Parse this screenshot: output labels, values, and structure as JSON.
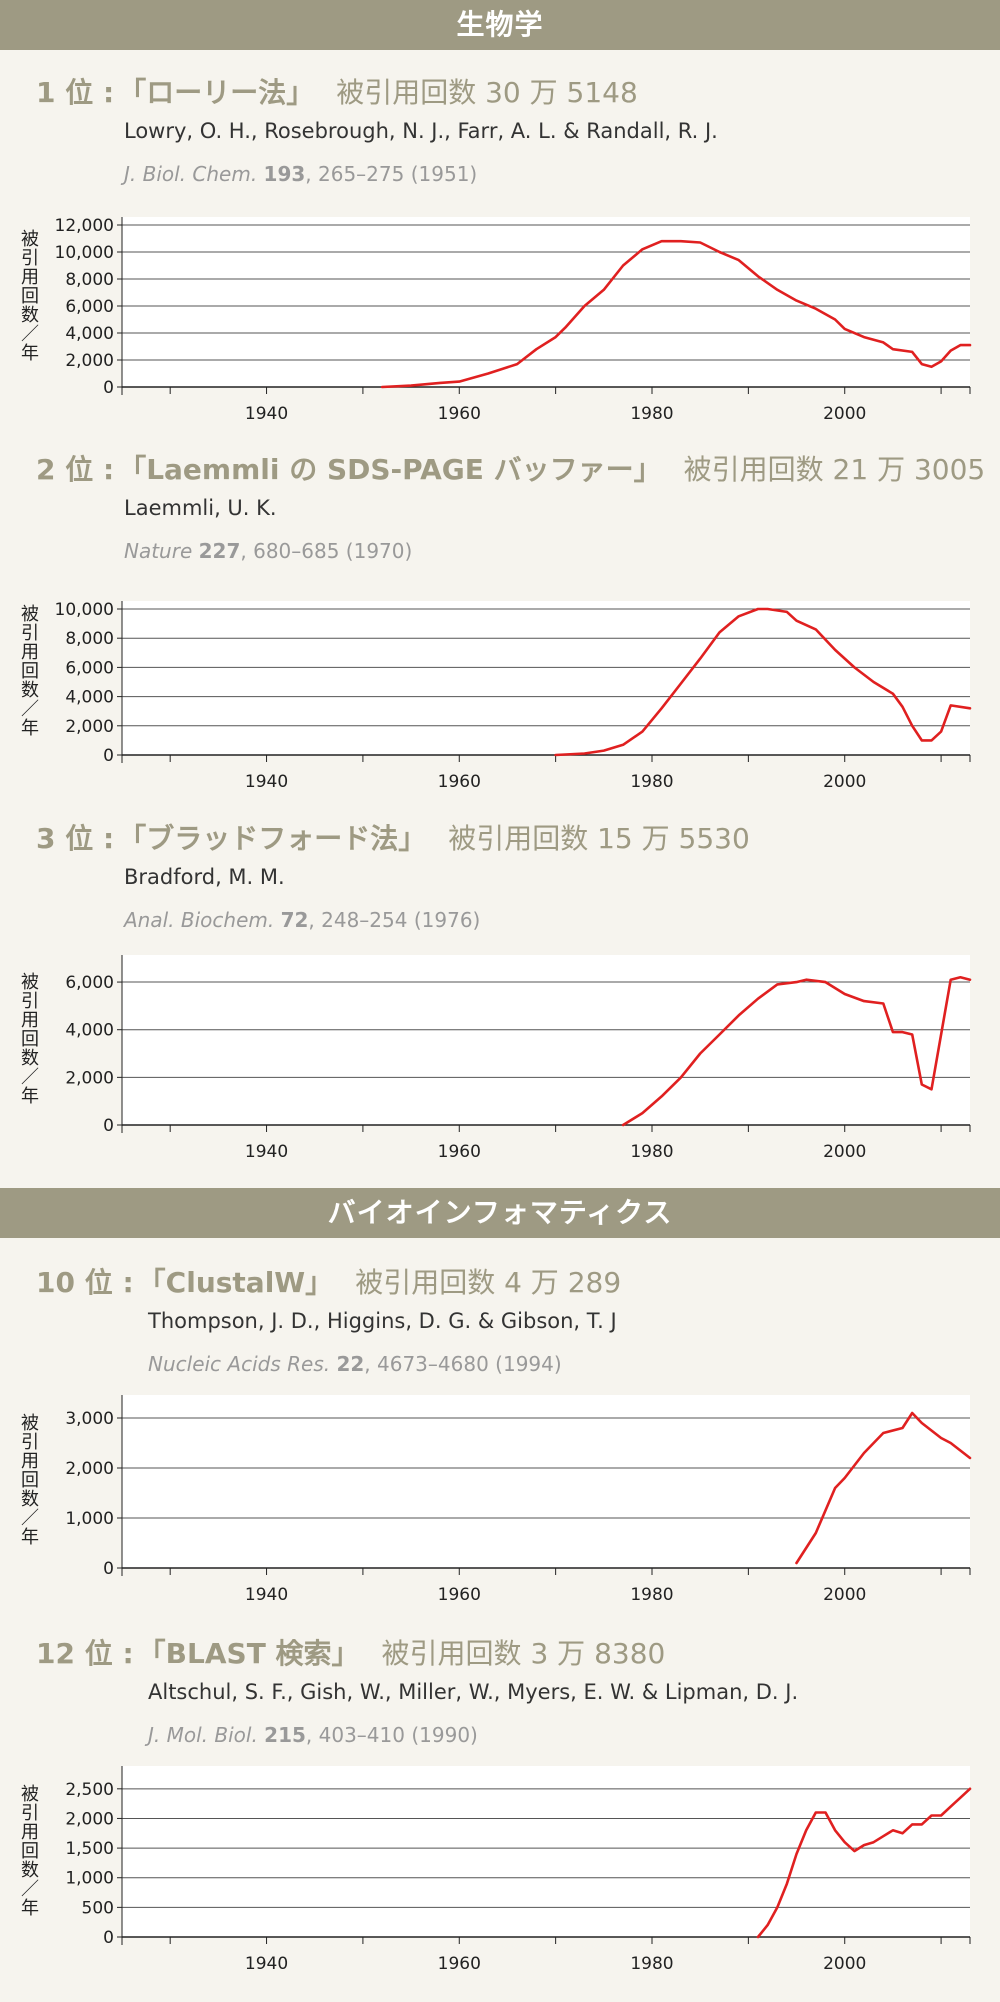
{
  "sections": [
    {
      "title": "生物学"
    },
    {
      "title": "バイオインフォマティクス"
    }
  ],
  "y_axis_label": [
    "被",
    "引",
    "用",
    "回",
    "数",
    "／",
    "年"
  ],
  "entries": [
    {
      "rank": "1 位 :",
      "name": "「ローリー法」",
      "citations": "被引用回数 30 万 5148",
      "authors": "Lowry, O. H., Rosebrough, N. J., Farr, A. L. & Randall, R. J.",
      "journal": "J. Biol. Chem.",
      "volume": "193",
      "pages": ", 265–275 (1951)"
    },
    {
      "rank": "2 位 :",
      "name": "「Laemmli の SDS-PAGE バッファー」",
      "citations": "被引用回数 21 万 3005",
      "authors": "Laemmli, U. K.",
      "journal": "Nature",
      "volume": "227",
      "pages": ", 680–685 (1970)"
    },
    {
      "rank": "3 位 :",
      "name": "「ブラッドフォード法」",
      "citations": "被引用回数 15 万 5530",
      "authors": "Bradford, M. M.",
      "journal": "Anal. Biochem.",
      "volume": "72",
      "pages": ", 248–254 (1976)"
    },
    {
      "rank": "10 位 :",
      "name": "「ClustalW」",
      "citations": "被引用回数 4 万 289",
      "authors": "Thompson, J. D., Higgins, D. G. & Gibson, T. J",
      "journal": "Nucleic Acids Res.",
      "volume": "22",
      "pages": ", 4673–4680 (1994)"
    },
    {
      "rank": "12 位 :",
      "name": "「BLAST 検索」",
      "citations": "被引用回数 3 万 8380",
      "authors": "Altschul, S. F., Gish, W., Miller, W., Myers, E. W. & Lipman, D. J.",
      "journal": "J. Mol. Biol.",
      "volume": "215",
      "pages": ", 403–410 (1990)"
    }
  ],
  "chart_data": [
    {
      "type": "line",
      "line_color": "#e02020",
      "x_ticks": [
        1940,
        1960,
        1980,
        2000
      ],
      "xlim": [
        1925,
        2013
      ],
      "ylim": [
        0,
        12000
      ],
      "y_ticks": [
        0,
        2000,
        4000,
        6000,
        8000,
        10000,
        12000
      ],
      "y_tick_labels": [
        "0",
        "2,000",
        "4,000",
        "6,000",
        "8,000",
        "10,000",
        "12,000"
      ],
      "grid": true,
      "series": [
        {
          "x": [
            1952,
            1955,
            1958,
            1960,
            1963,
            1966,
            1968,
            1970,
            1971,
            1973,
            1975,
            1977,
            1979,
            1981,
            1983,
            1985,
            1987,
            1989,
            1991,
            1993,
            1995,
            1997,
            1999,
            2000,
            2002,
            2004,
            2005,
            2007,
            2008,
            2009,
            2010,
            2011,
            2012,
            2013
          ],
          "y": [
            0,
            100,
            300,
            400,
            1000,
            1700,
            2800,
            3700,
            4400,
            6000,
            7200,
            9000,
            10200,
            10800,
            10800,
            10700,
            10000,
            9400,
            8200,
            7200,
            6400,
            5800,
            5000,
            4300,
            3700,
            3300,
            2800,
            2600,
            1700,
            1500,
            1900,
            2700,
            3100,
            3100
          ]
        }
      ]
    },
    {
      "type": "line",
      "line_color": "#e02020",
      "x_ticks": [
        1940,
        1960,
        1980,
        2000
      ],
      "xlim": [
        1925,
        2013
      ],
      "ylim": [
        0,
        10000
      ],
      "y_ticks": [
        0,
        2000,
        4000,
        6000,
        8000,
        10000
      ],
      "y_tick_labels": [
        "0",
        "2,000",
        "4,000",
        "6,000",
        "8,000",
        "10,000"
      ],
      "grid": true,
      "series": [
        {
          "x": [
            1970,
            1973,
            1975,
            1977,
            1979,
            1981,
            1983,
            1985,
            1987,
            1989,
            1991,
            1992,
            1994,
            1995,
            1997,
            1999,
            2001,
            2003,
            2005,
            2006,
            2007,
            2008,
            2009,
            2010,
            2011,
            2013
          ],
          "y": [
            0,
            100,
            300,
            700,
            1600,
            3200,
            4900,
            6600,
            8400,
            9500,
            10000,
            10000,
            9800,
            9200,
            8600,
            7200,
            6000,
            5000,
            4200,
            3300,
            2000,
            1000,
            1000,
            1600,
            3400,
            3200
          ]
        }
      ]
    },
    {
      "type": "line",
      "line_color": "#e02020",
      "x_ticks": [
        1940,
        1960,
        1980,
        2000
      ],
      "xlim": [
        1925,
        2013
      ],
      "ylim": [
        0,
        6800
      ],
      "y_ticks": [
        0,
        2000,
        4000,
        6000
      ],
      "y_tick_labels": [
        "0",
        "2,000",
        "4,000",
        "6,000"
      ],
      "grid": true,
      "series": [
        {
          "x": [
            1977,
            1979,
            1981,
            1983,
            1985,
            1987,
            1989,
            1991,
            1993,
            1995,
            1996,
            1998,
            2000,
            2002,
            2004,
            2005,
            2006,
            2007,
            2008,
            2009,
            2010,
            2011,
            2012,
            2013
          ],
          "y": [
            0,
            500,
            1200,
            2000,
            3000,
            3800,
            4600,
            5300,
            5900,
            6000,
            6100,
            6000,
            5500,
            5200,
            5100,
            3900,
            3900,
            3800,
            1700,
            1500,
            3800,
            6100,
            6200,
            6100
          ]
        }
      ]
    },
    {
      "type": "line",
      "line_color": "#e02020",
      "x_ticks": [
        1940,
        1960,
        1980,
        2000
      ],
      "xlim": [
        1925,
        2013
      ],
      "ylim": [
        0,
        3300
      ],
      "y_ticks": [
        0,
        1000,
        2000,
        3000
      ],
      "y_tick_labels": [
        "0",
        "1,000",
        "2,000",
        "3,000"
      ],
      "grid": true,
      "series": [
        {
          "x": [
            1995,
            1997,
            1999,
            2000,
            2002,
            2004,
            2006,
            2007,
            2008,
            2010,
            2011,
            2013
          ],
          "y": [
            100,
            700,
            1600,
            1800,
            2300,
            2700,
            2800,
            3100,
            2900,
            2600,
            2500,
            2200
          ]
        }
      ]
    },
    {
      "type": "line",
      "line_color": "#e02020",
      "x_ticks": [
        1940,
        1960,
        1980,
        2000
      ],
      "xlim": [
        1925,
        2013
      ],
      "ylim": [
        0,
        2750
      ],
      "y_ticks": [
        0,
        500,
        1000,
        1500,
        2000,
        2500
      ],
      "y_tick_labels": [
        "0",
        "500",
        "1,000",
        "1,500",
        "2,000",
        "2,500"
      ],
      "grid": true,
      "series": [
        {
          "x": [
            1991,
            1992,
            1993,
            1994,
            1995,
            1996,
            1997,
            1998,
            1999,
            2000,
            2001,
            2002,
            2003,
            2004,
            2005,
            2006,
            2007,
            2008,
            2009,
            2010,
            2011,
            2012,
            2013
          ],
          "y": [
            0,
            200,
            500,
            900,
            1400,
            1800,
            2100,
            2100,
            1800,
            1600,
            1450,
            1550,
            1600,
            1700,
            1800,
            1750,
            1900,
            1900,
            2050,
            2050,
            2200,
            2350,
            2500
          ]
        }
      ]
    }
  ]
}
